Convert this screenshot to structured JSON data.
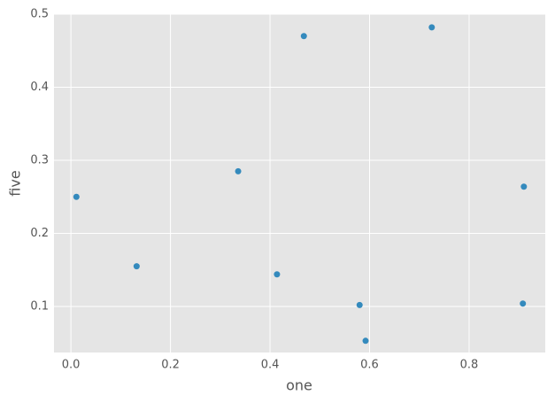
{
  "chart_data": {
    "type": "scatter",
    "xlabel": "one",
    "ylabel": "five",
    "x": [
      0.011,
      0.132,
      0.336,
      0.414,
      0.468,
      0.58,
      0.592,
      0.725,
      0.91,
      0.908
    ],
    "series": [
      {
        "color": "#348abd",
        "values": [
          0.25,
          0.155,
          0.285,
          0.144,
          0.47,
          0.102,
          0.053,
          0.482,
          0.264,
          0.104
        ]
      }
    ],
    "xlim": [
      -0.034,
      0.953
    ],
    "ylim": [
      0.037,
      0.5
    ],
    "xticks": [
      {
        "value": 0,
        "label": "0.0"
      },
      0.2,
      0.4,
      0.6,
      0.8
    ],
    "yticks": [
      0.1,
      0.2,
      0.3,
      0.4,
      0.5
    ],
    "grid": true,
    "background": "#e5e5e5"
  }
}
